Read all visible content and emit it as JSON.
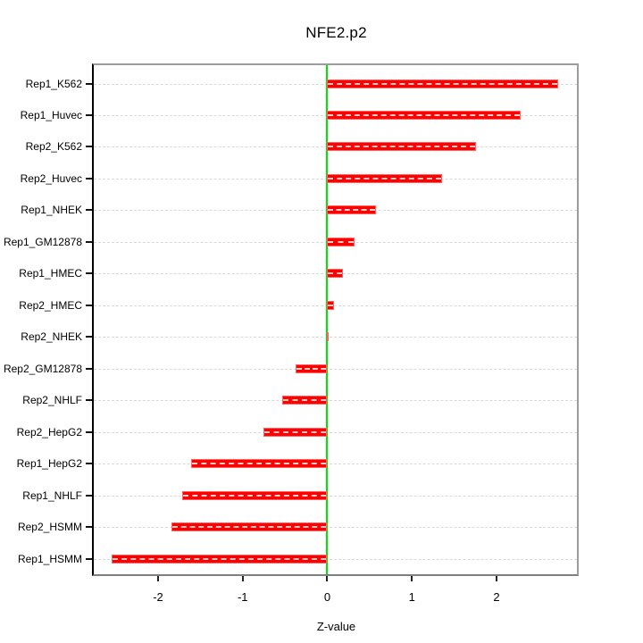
{
  "title": "NFE2.p2",
  "chart_data": {
    "type": "bar",
    "orientation": "horizontal",
    "title": "NFE2.p2",
    "xlabel": "Z-value",
    "ylabel": "",
    "categories": [
      "Rep1_K562",
      "Rep1_Huvec",
      "Rep2_K562",
      "Rep2_Huvec",
      "Rep1_NHEK",
      "Rep1_GM12878",
      "Rep1_HMEC",
      "Rep2_HMEC",
      "Rep2_NHEK",
      "Rep2_GM12878",
      "Rep2_NHLF",
      "Rep2_HepG2",
      "Rep1_HepG2",
      "Rep1_NHLF",
      "Rep2_HSMM",
      "Rep1_HSMM"
    ],
    "values": [
      2.73,
      2.28,
      1.76,
      1.36,
      0.58,
      0.32,
      0.18,
      0.08,
      0.02,
      -0.37,
      -0.53,
      -0.75,
      -1.61,
      -1.72,
      -1.84,
      -2.55
    ],
    "x_ticks": [
      -2,
      -1,
      0,
      1,
      2
    ],
    "x_tick_labels": [
      "-2",
      "-1",
      "0",
      "1",
      "2"
    ],
    "xlim": [
      -2.76,
      2.95
    ],
    "grid": true,
    "legend": "none",
    "colors": {
      "bar": "#ff0000",
      "bar_border": "#ff6060",
      "bar_center_dash": "#ffffff",
      "zero_line": "#00e600",
      "gridline": "#d9d9d9",
      "panel_border": "#9c9c9c",
      "axis": "#000000",
      "text": "#000000"
    }
  }
}
